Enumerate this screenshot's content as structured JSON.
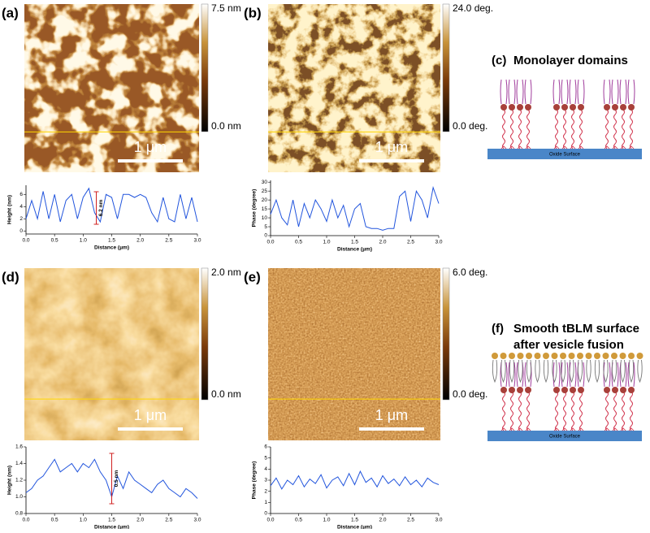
{
  "panels": [
    {
      "label": "(a)",
      "colorbar": {
        "max": "7.5 nm",
        "min": "0.0 nm"
      },
      "scale_bar": "1 μm"
    },
    {
      "label": "(b)",
      "colorbar": {
        "max": "24.0 deg.",
        "min": "0.0 deg."
      },
      "scale_bar": "1 μm"
    },
    {
      "label": "(d)",
      "colorbar": {
        "max": "2.0 nm",
        "min": "0.0 nm"
      },
      "scale_bar": "1 μm"
    },
    {
      "label": "(e)",
      "colorbar": {
        "max": "6.0 deg.",
        "min": "0.0 deg."
      },
      "scale_bar": "1 μm"
    }
  ],
  "diagrams": [
    {
      "label": "(c)",
      "title": [
        "Monolayer domains"
      ],
      "surface": "Oxide Surface"
    },
    {
      "label": "(f)",
      "title": [
        "Smooth tBLM surface",
        "after vesicle fusion"
      ],
      "surface": "Oxide Surface"
    }
  ],
  "chart_data": [
    {
      "type": "line",
      "xlabel": "Distance (μm)",
      "ylabel": "Height (nm)",
      "annotation": "6.2 nm",
      "color": "#2255dd",
      "x": [
        0,
        0.1,
        0.2,
        0.3,
        0.4,
        0.5,
        0.6,
        0.7,
        0.8,
        0.9,
        1,
        1.1,
        1.2,
        1.3,
        1.4,
        1.5,
        1.6,
        1.7,
        1.8,
        1.9,
        2,
        2.1,
        2.2,
        2.3,
        2.4,
        2.5,
        2.6,
        2.7,
        2.8,
        2.9,
        3
      ],
      "values": [
        2,
        5,
        2,
        6.5,
        2,
        6,
        1.5,
        5,
        6,
        2,
        5.5,
        7,
        3,
        1.5,
        6,
        5.5,
        2,
        6,
        6,
        5.5,
        6,
        5.5,
        3,
        1.5,
        5.5,
        2,
        1.5,
        6,
        2,
        5.5,
        1.5
      ],
      "xlim": [
        0,
        3
      ],
      "xticks": [
        {
          "value": 0,
          "label": "0.0"
        },
        0.5,
        {
          "value": 1,
          "label": "1.0"
        },
        1.5,
        {
          "value": 2,
          "label": "2.0"
        },
        2.5,
        {
          "value": 3,
          "label": "3.0"
        }
      ],
      "ylim": [
        -0.5,
        7.5
      ],
      "yticks": [
        0,
        2,
        4,
        6
      ]
    },
    {
      "type": "line",
      "xlabel": "Distance (μm)",
      "ylabel": "Phase (degree)",
      "color": "#2255dd",
      "x": [
        0,
        0.1,
        0.2,
        0.3,
        0.4,
        0.5,
        0.6,
        0.7,
        0.8,
        0.9,
        1,
        1.1,
        1.2,
        1.3,
        1.4,
        1.5,
        1.6,
        1.7,
        1.8,
        1.9,
        2,
        2.1,
        2.2,
        2.3,
        2.4,
        2.5,
        2.6,
        2.7,
        2.8,
        2.9,
        3
      ],
      "values": [
        12,
        20,
        10,
        6,
        20,
        5,
        18,
        10,
        20,
        15,
        8,
        20,
        10,
        17,
        5,
        15,
        18,
        5,
        4,
        4,
        3,
        4,
        4,
        22,
        25,
        8,
        25,
        20,
        10,
        27,
        18
      ],
      "xlim": [
        0,
        3
      ],
      "xticks": [
        {
          "value": 0,
          "label": "0.0"
        },
        0.5,
        {
          "value": 1,
          "label": "1.0"
        },
        1.5,
        {
          "value": 2,
          "label": "2.0"
        },
        2.5,
        {
          "value": 3,
          "label": "3.0"
        }
      ],
      "ylim": [
        0,
        31
      ],
      "yticks": [
        0,
        5,
        10,
        15,
        20,
        25,
        30
      ]
    },
    {
      "type": "line",
      "xlabel": "Distance (μm)",
      "ylabel": "Height (nm)",
      "annotation": "0.5 nm",
      "color": "#2255dd",
      "x": [
        0,
        0.1,
        0.2,
        0.3,
        0.4,
        0.5,
        0.6,
        0.7,
        0.8,
        0.9,
        1,
        1.1,
        1.2,
        1.3,
        1.4,
        1.5,
        1.6,
        1.7,
        1.8,
        1.9,
        2,
        2.1,
        2.2,
        2.3,
        2.4,
        2.5,
        2.6,
        2.7,
        2.8,
        2.9,
        3
      ],
      "values": [
        1.05,
        1.1,
        1.2,
        1.25,
        1.35,
        1.45,
        1.3,
        1.35,
        1.4,
        1.3,
        1.4,
        1.35,
        1.45,
        1.3,
        1.2,
        1,
        1.25,
        1.1,
        1.3,
        1.2,
        1.15,
        1.1,
        1.05,
        1.15,
        1.2,
        1.1,
        1.05,
        1,
        1.1,
        1.05,
        0.98
      ],
      "xlim": [
        0,
        3
      ],
      "xticks": [
        {
          "value": 0,
          "label": "0.0"
        },
        0.5,
        {
          "value": 1,
          "label": "1.0"
        },
        1.5,
        {
          "value": 2,
          "label": "2.0"
        },
        2.5,
        {
          "value": 3,
          "label": "3.0"
        }
      ],
      "ylim": [
        0.8,
        1.6
      ],
      "yticks": [
        0.8,
        {
          "value": 1,
          "label": "1.0"
        },
        1.2,
        1.4,
        1.6
      ]
    },
    {
      "type": "line",
      "xlabel": "Distance (μm)",
      "ylabel": "Phase (degree)",
      "color": "#2255dd",
      "x": [
        0,
        0.1,
        0.2,
        0.3,
        0.4,
        0.5,
        0.6,
        0.7,
        0.8,
        0.9,
        1,
        1.1,
        1.2,
        1.3,
        1.4,
        1.5,
        1.6,
        1.7,
        1.8,
        1.9,
        2,
        2.1,
        2.2,
        2.3,
        2.4,
        2.5,
        2.6,
        2.7,
        2.8,
        2.9,
        3
      ],
      "values": [
        2.5,
        3.2,
        2.2,
        3,
        2.6,
        3.4,
        2.4,
        3.1,
        2.7,
        3.5,
        2.3,
        3,
        3.3,
        2.5,
        3.6,
        2.6,
        3.8,
        2.8,
        3.2,
        2.4,
        3.4,
        2.7,
        3.1,
        2.5,
        3.3,
        2.6,
        3,
        2.4,
        3.2,
        2.8,
        2.6
      ],
      "xlim": [
        0,
        3
      ],
      "xticks": [
        {
          "value": 0,
          "label": "0.0"
        },
        0.5,
        {
          "value": 1,
          "label": "1.0"
        },
        1.5,
        {
          "value": 2,
          "label": "2.0"
        },
        2.5,
        {
          "value": 3,
          "label": "3.0"
        }
      ],
      "ylim": [
        0,
        6
      ],
      "yticks": [
        0,
        1,
        2,
        3,
        4,
        5,
        6
      ]
    }
  ]
}
